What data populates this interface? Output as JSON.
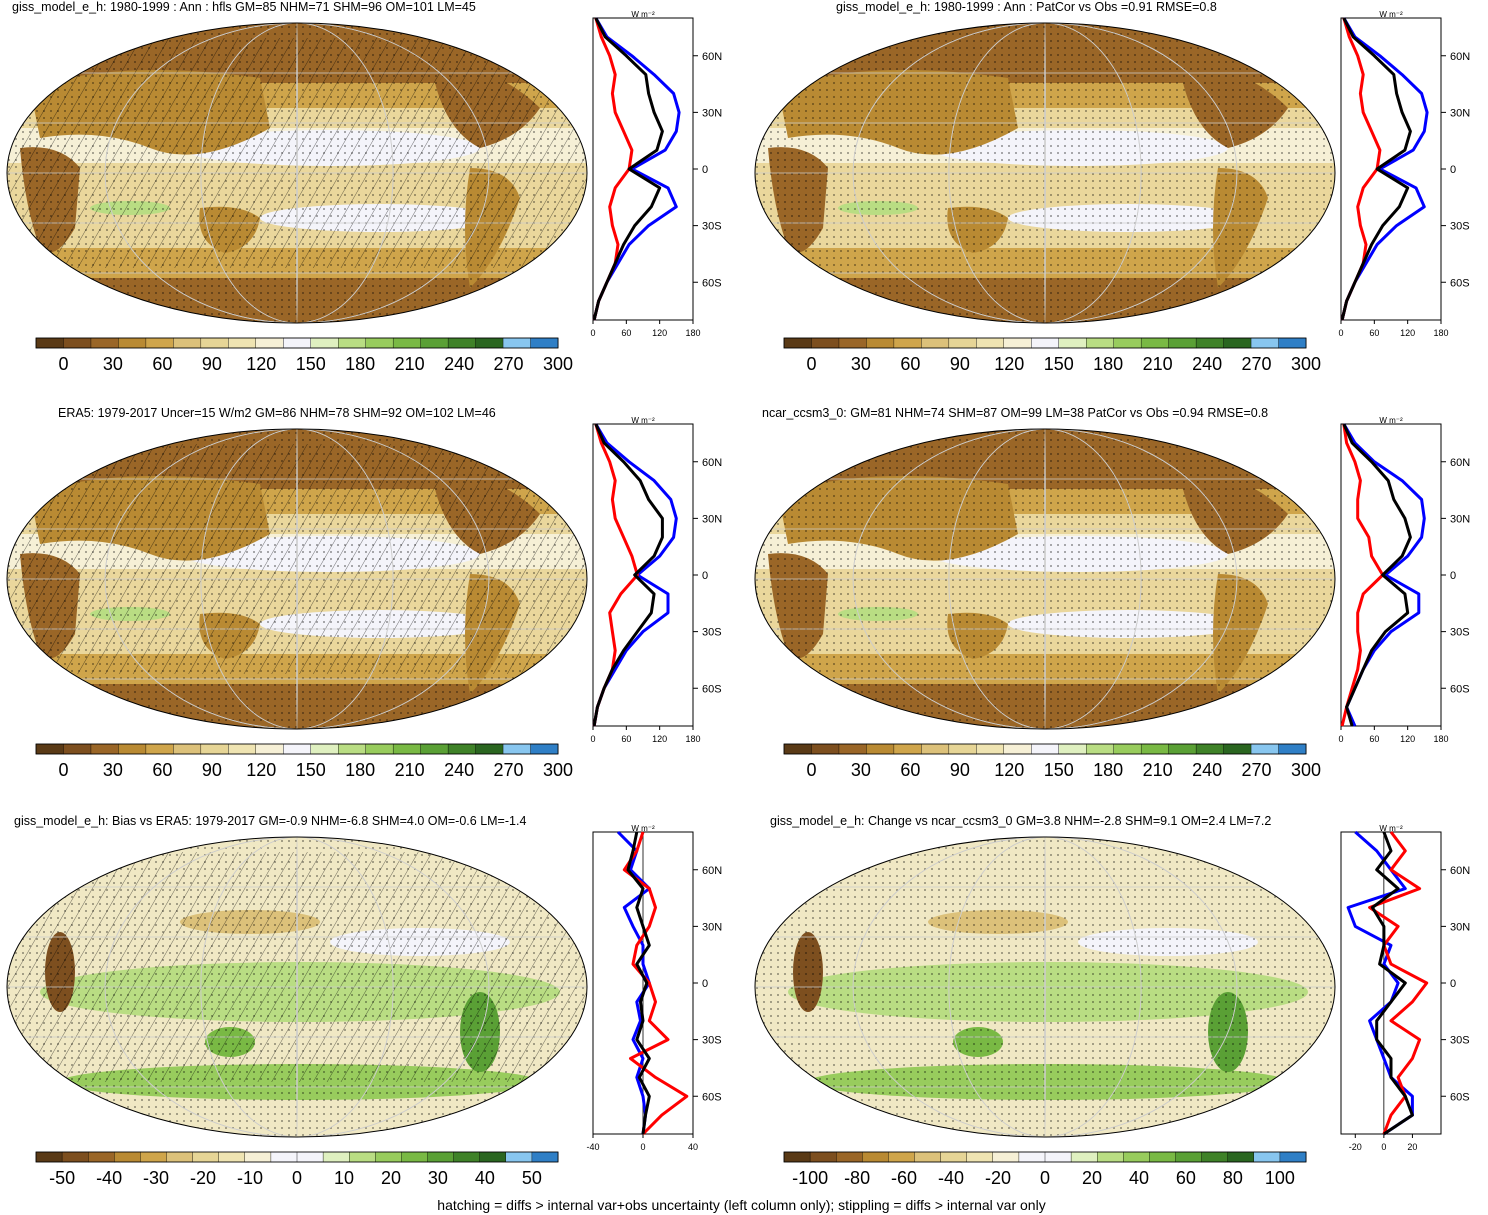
{
  "footer": "hatching = diffs > internal var+obs uncertainty (left column only); stippling = diffs > internal var only",
  "profile_unit": "W m⁻²",
  "lat_ticks": [
    "60N",
    "30N",
    "0",
    "30S",
    "60S"
  ],
  "series_colors": {
    "model": "#000000",
    "obs": "#0000ff",
    "land": "#ff0000"
  },
  "colors": {
    "abs_scale": [
      "#5a3a16",
      "#7d4f1f",
      "#9a6627",
      "#b98a33",
      "#cfa54b",
      "#dcc17a",
      "#e6d596",
      "#efe4b2",
      "#f6f0d6",
      "#f4f4fa",
      "#dff0c0",
      "#b9dd83",
      "#98cc5d",
      "#79b944",
      "#5aa035",
      "#3f8228",
      "#2a6620",
      "#88c6ef",
      "#2f7fc6"
    ],
    "diff_scale": [
      "#5a3a16",
      "#7d4f1f",
      "#9a6627",
      "#b98a33",
      "#cfa54b",
      "#dcc17a",
      "#e6d596",
      "#efe4b2",
      "#f6f0d6",
      "#f4f4fa",
      "#f4f4fa",
      "#dff0c0",
      "#b9dd83",
      "#98cc5d",
      "#79b944",
      "#5aa035",
      "#3f8228",
      "#2a6620",
      "#88c6ef",
      "#2f7fc6"
    ]
  },
  "panels": [
    {
      "id": "p1",
      "title": "giss_model_e_h: 1980-1999 : Ann : hfls GM=85 NHM=71 SHM=96 OM=101 LM=45",
      "cbar": {
        "scale": "abs_scale",
        "labels": [
          "0",
          "30",
          "60",
          "90",
          "120",
          "150",
          "180",
          "210",
          "240",
          "270",
          "300"
        ]
      },
      "hatch": true
    },
    {
      "id": "p2",
      "title": "giss_model_e_h: 1980-1999 : Ann : PatCor vs Obs =0.91 RMSE=0.8",
      "cbar": {
        "scale": "abs_scale",
        "labels": [
          "0",
          "30",
          "60",
          "90",
          "120",
          "150",
          "180",
          "210",
          "240",
          "270",
          "300"
        ]
      },
      "hatch": false
    },
    {
      "id": "p3",
      "title": "ERA5: 1979-2017 Uncer=15 W/m2 GM=86 NHM=78 SHM=92 OM=102 LM=46",
      "cbar": {
        "scale": "abs_scale",
        "labels": [
          "0",
          "30",
          "60",
          "90",
          "120",
          "150",
          "180",
          "210",
          "240",
          "270",
          "300"
        ]
      },
      "hatch": true
    },
    {
      "id": "p4",
      "title": "ncar_ccsm3_0: GM=81 NHM=74 SHM=87 OM=99 LM=38 PatCor vs Obs =0.94 RMSE=0.8",
      "cbar": {
        "scale": "abs_scale",
        "labels": [
          "0",
          "30",
          "60",
          "90",
          "120",
          "150",
          "180",
          "210",
          "240",
          "270",
          "300"
        ]
      },
      "hatch": false
    },
    {
      "id": "p5",
      "title": "giss_model_e_h: Bias vs ERA5: 1979-2017 GM=-0.9 NHM=-6.8 SHM=4.0 OM=-0.6 LM=-1.4",
      "cbar": {
        "scale": "diff_scale",
        "labels": [
          "-50",
          "-40",
          "-30",
          "-20",
          "-10",
          "0",
          "10",
          "20",
          "30",
          "40",
          "50"
        ]
      },
      "hatch": true
    },
    {
      "id": "p6",
      "title": "giss_model_e_h: Change vs ncar_ccsm3_0 GM=3.8 NHM=-2.8 SHM=9.1 OM=2.4 LM=7.2",
      "cbar": {
        "scale": "diff_scale",
        "labels": [
          "-100",
          "-80",
          "-60",
          "-40",
          "-20",
          "0",
          "20",
          "40",
          "60",
          "80",
          "100"
        ]
      },
      "hatch": false
    }
  ],
  "chart_data": [
    {
      "panel": "p1",
      "type": "line",
      "ylabel": "",
      "xlabel": "",
      "xlim": [
        0,
        180
      ],
      "xticks": [
        "0",
        "60",
        "120",
        "180"
      ],
      "lat": [
        80,
        70,
        60,
        50,
        40,
        30,
        20,
        10,
        0,
        -10,
        -20,
        -30,
        -40,
        -50,
        -60,
        -70,
        -80
      ],
      "series": [
        {
          "values": [
            5,
            22,
            60,
            95,
            100,
            110,
            125,
            115,
            65,
            120,
            105,
            75,
            55,
            40,
            25,
            10,
            2
          ]
        },
        {
          "values": [
            5,
            25,
            70,
            110,
            145,
            155,
            150,
            130,
            70,
            135,
            150,
            100,
            65,
            45,
            25,
            10,
            2
          ]
        },
        {
          "values": [
            5,
            15,
            30,
            40,
            35,
            40,
            55,
            70,
            65,
            40,
            30,
            35,
            45,
            40,
            25,
            10,
            2
          ]
        }
      ]
    },
    {
      "panel": "p2",
      "type": "line",
      "xlim": [
        0,
        180
      ],
      "xticks": [
        "0",
        "60",
        "120",
        "180"
      ],
      "lat": [
        80,
        70,
        60,
        50,
        40,
        30,
        20,
        10,
        0,
        -10,
        -20,
        -30,
        -40,
        -50,
        -60,
        -70,
        -80
      ],
      "series": [
        {
          "values": [
            5,
            22,
            60,
            95,
            100,
            110,
            125,
            115,
            65,
            120,
            105,
            75,
            55,
            40,
            25,
            10,
            2
          ]
        },
        {
          "values": [
            5,
            25,
            70,
            110,
            145,
            155,
            150,
            130,
            70,
            135,
            150,
            100,
            65,
            45,
            25,
            10,
            2
          ]
        },
        {
          "values": [
            5,
            15,
            30,
            40,
            35,
            40,
            55,
            70,
            65,
            40,
            30,
            35,
            45,
            40,
            25,
            10,
            2
          ]
        }
      ]
    },
    {
      "panel": "p3",
      "type": "line",
      "xlim": [
        0,
        180
      ],
      "xticks": [
        "0",
        "60",
        "120",
        "180"
      ],
      "lat": [
        80,
        70,
        60,
        50,
        40,
        30,
        20,
        10,
        0,
        -10,
        -20,
        -30,
        -40,
        -50,
        -60,
        -70,
        -80
      ],
      "series": [
        {
          "values": [
            5,
            20,
            55,
            85,
            100,
            125,
            125,
            110,
            75,
            110,
            105,
            80,
            55,
            35,
            20,
            8,
            2
          ]
        },
        {
          "values": [
            5,
            25,
            65,
            110,
            140,
            150,
            145,
            120,
            80,
            135,
            135,
            90,
            60,
            40,
            20,
            8,
            2
          ]
        },
        {
          "values": [
            5,
            15,
            30,
            40,
            35,
            40,
            55,
            70,
            80,
            50,
            30,
            35,
            40,
            35,
            20,
            8,
            2
          ]
        }
      ]
    },
    {
      "panel": "p4",
      "type": "line",
      "xlim": [
        0,
        180
      ],
      "xticks": [
        "0",
        "60",
        "120",
        "180"
      ],
      "lat": [
        80,
        70,
        60,
        50,
        40,
        30,
        20,
        10,
        0,
        -10,
        -20,
        -30,
        -40,
        -50,
        -60,
        -70,
        -80
      ],
      "series": [
        {
          "values": [
            5,
            20,
            55,
            85,
            95,
            115,
            125,
            110,
            75,
            115,
            120,
            80,
            55,
            40,
            25,
            10,
            20
          ]
        },
        {
          "values": [
            5,
            25,
            60,
            110,
            145,
            150,
            145,
            120,
            80,
            140,
            140,
            90,
            60,
            40,
            25,
            10,
            25
          ]
        },
        {
          "values": [
            5,
            10,
            25,
            35,
            30,
            30,
            50,
            55,
            75,
            40,
            30,
            30,
            35,
            30,
            20,
            10,
            2
          ]
        }
      ]
    },
    {
      "panel": "p5",
      "type": "line",
      "xlim": [
        -40,
        40
      ],
      "xticks": [
        "-40",
        "0",
        "40"
      ],
      "lat": [
        80,
        70,
        60,
        50,
        40,
        30,
        20,
        10,
        0,
        -10,
        -20,
        -30,
        -40,
        -50,
        -60,
        -70,
        -80
      ],
      "series": [
        {
          "values": [
            -5,
            -8,
            -12,
            0,
            -5,
            0,
            5,
            -5,
            3,
            -2,
            0,
            -5,
            5,
            -3,
            5,
            2,
            0
          ]
        },
        {
          "values": [
            -20,
            -5,
            -10,
            5,
            -15,
            -8,
            0,
            0,
            5,
            -5,
            -2,
            -8,
            0,
            -5,
            0,
            2,
            0
          ]
        },
        {
          "values": [
            0,
            -5,
            -15,
            5,
            10,
            5,
            -5,
            -8,
            5,
            10,
            5,
            20,
            -10,
            10,
            35,
            15,
            0
          ]
        }
      ]
    },
    {
      "panel": "p6",
      "type": "line",
      "xlim": [
        -30,
        40
      ],
      "xticks": [
        "-20",
        "0",
        "20"
      ],
      "lat": [
        80,
        70,
        60,
        50,
        40,
        30,
        20,
        10,
        0,
        -10,
        -20,
        -30,
        -40,
        -50,
        -60,
        -70,
        -80
      ],
      "series": [
        {
          "values": [
            0,
            5,
            -5,
            10,
            -8,
            0,
            0,
            -3,
            15,
            5,
            -5,
            -5,
            5,
            5,
            15,
            20,
            0
          ]
        },
        {
          "values": [
            -20,
            -5,
            5,
            15,
            -25,
            -20,
            5,
            0,
            10,
            5,
            -10,
            -5,
            0,
            5,
            20,
            20,
            0
          ]
        },
        {
          "values": [
            5,
            15,
            5,
            25,
            -10,
            10,
            0,
            5,
            30,
            20,
            5,
            25,
            20,
            10,
            15,
            5,
            0
          ]
        }
      ]
    }
  ]
}
